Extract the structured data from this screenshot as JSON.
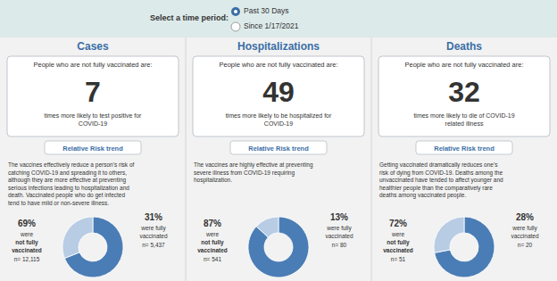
{
  "annotations": [
    "Select a time period:",
    "Past 30 Days",
    "Since 1/17/2021"
  ],
  "chart_data": [
    {
      "type": "pie",
      "title": "Cases",
      "annotations": [
        "People who are not fully vaccinated are:",
        "7",
        "times more likely to test positive for\nCOVID-19",
        "Relative Risk trend",
        "The vaccines effectively reduce a person's risk of\ncatching COVID-19 and spreading it to others,\nalthough they are more effective at preventing\nserious infections leading to hospitalization and\ndeath. Vaccinated people who do get infected\ntend to have mild or non-severe illness."
      ],
      "categories": [
        "were\nnot fully\nvaccinated",
        "were fully\nvaccinated"
      ],
      "values": [
        69,
        31
      ],
      "value_labels": [
        "69%",
        "31%"
      ],
      "counts": [
        {
          "value": 12115,
          "label": "n= 12,115"
        },
        {
          "value": 5437,
          "label": "n= 5,437"
        }
      ],
      "colors": [
        "#4a7db5",
        "#b8cce4"
      ],
      "data_labels": true
    },
    {
      "type": "pie",
      "title": "Hospitalizations",
      "annotations": [
        "People who are not fully vaccinated are:",
        "49",
        "times more likely to be hospitalized for\nCOVID-19",
        "Relative Risk trend",
        "The vaccines are highly effective at preventing\nsevere illness from COVID-19 requiring\nhospitalization."
      ],
      "categories": [
        "were\nnot fully\nvaccinated",
        "were fully\nvaccinated"
      ],
      "values": [
        87,
        13
      ],
      "value_labels": [
        "87%",
        "13%"
      ],
      "counts": [
        {
          "value": 541,
          "label": "n= 541"
        },
        {
          "value": 80,
          "label": "n= 80"
        }
      ],
      "colors": [
        "#4a7db5",
        "#b8cce4"
      ],
      "data_labels": true
    },
    {
      "type": "pie",
      "title": "Deaths",
      "annotations": [
        "People who are not fully vaccinated are:",
        "32",
        "times more likely to die of COVID-19\nrelated illness",
        "Relative Risk trend",
        "Getting vaccinated dramatically reduces one's\nrisk of dying from COVID-19. Deaths among the\nunvaccinated have tended to affect younger and\nhealthier people than the comparatively rare\ndeaths among vaccinated people."
      ],
      "categories": [
        "were\nnot fully\nvaccinated",
        "were fully\nvaccinated"
      ],
      "values": [
        72,
        28
      ],
      "value_labels": [
        "72%",
        "28%"
      ],
      "counts": [
        {
          "value": 51,
          "label": "n= 51"
        },
        {
          "value": 20,
          "label": "n= 20"
        }
      ],
      "colors": [
        "#4a7db5",
        "#b8cce4"
      ],
      "data_labels": true
    }
  ]
}
